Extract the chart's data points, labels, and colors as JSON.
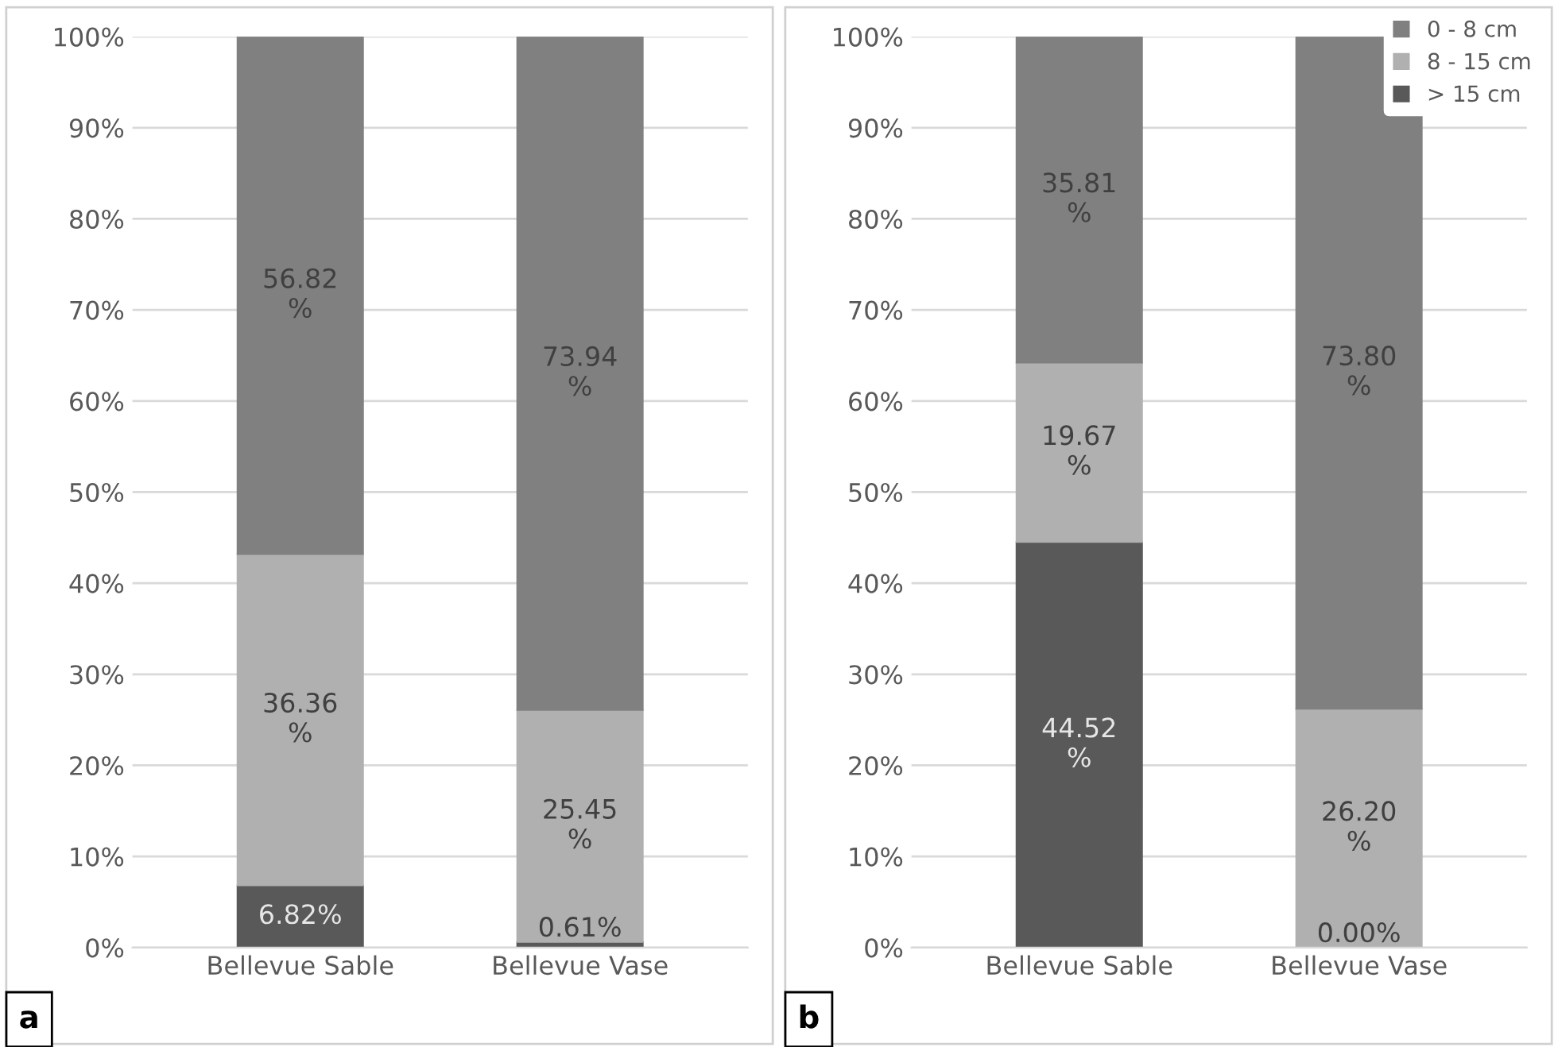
{
  "chart_data": [
    {
      "type": "bar",
      "stacked": true,
      "categories": [
        "Bellevue Sable",
        "Bellevue Vase"
      ],
      "ylim": [
        0,
        100
      ],
      "yticks": [
        {
          "value": 0,
          "label": "0%"
        },
        {
          "value": 10,
          "label": "10%"
        },
        {
          "value": 20,
          "label": "20%"
        },
        {
          "value": 30,
          "label": "30%"
        },
        {
          "value": 40,
          "label": "40%"
        },
        {
          "value": 50,
          "label": "50%"
        },
        {
          "value": 60,
          "label": "60%"
        },
        {
          "value": 70,
          "label": "70%"
        },
        {
          "value": 80,
          "label": "80%"
        },
        {
          "value": 90,
          "label": "90%"
        },
        {
          "value": 100,
          "label": "100%"
        }
      ],
      "grid": "y",
      "legend": false,
      "annotations": [
        "a"
      ],
      "series": [
        {
          "color": "#595959",
          "values": [
            6.82,
            0.61
          ],
          "value_labels": [
            "6.82%",
            "0.61%"
          ]
        },
        {
          "color": "#b0b0b0",
          "values": [
            36.36,
            25.45
          ],
          "value_labels": [
            "36.36\n%",
            "25.45\n%"
          ]
        },
        {
          "color": "#808080",
          "values": [
            56.82,
            73.94
          ],
          "value_labels": [
            "56.82\n%",
            "73.94\n%"
          ]
        }
      ]
    },
    {
      "type": "bar",
      "stacked": true,
      "categories": [
        "Bellevue Sable",
        "Bellevue Vase"
      ],
      "ylim": [
        0,
        100
      ],
      "yticks": [
        {
          "value": 0,
          "label": "0%"
        },
        {
          "value": 10,
          "label": "10%"
        },
        {
          "value": 20,
          "label": "20%"
        },
        {
          "value": 30,
          "label": "30%"
        },
        {
          "value": 40,
          "label": "40%"
        },
        {
          "value": 50,
          "label": "50%"
        },
        {
          "value": 60,
          "label": "60%"
        },
        {
          "value": 70,
          "label": "70%"
        },
        {
          "value": 80,
          "label": "80%"
        },
        {
          "value": 90,
          "label": "90%"
        },
        {
          "value": 100,
          "label": "100%"
        }
      ],
      "grid": "y",
      "legend": "top right",
      "annotations": [
        "b"
      ],
      "series": [
        {
          "name": "> 15 cm",
          "color": "#595959",
          "values": [
            44.52,
            0.0
          ],
          "value_labels": [
            "44.52\n%",
            "0.00%"
          ]
        },
        {
          "name": "8 - 15 cm",
          "color": "#b0b0b0",
          "values": [
            19.67,
            26.2
          ],
          "value_labels": [
            "19.67\n%",
            "26.20\n%"
          ]
        },
        {
          "name": "0 - 8 cm",
          "color": "#808080",
          "values": [
            35.81,
            73.8
          ],
          "value_labels": [
            "35.81\n%",
            "73.80\n%"
          ]
        }
      ]
    }
  ]
}
